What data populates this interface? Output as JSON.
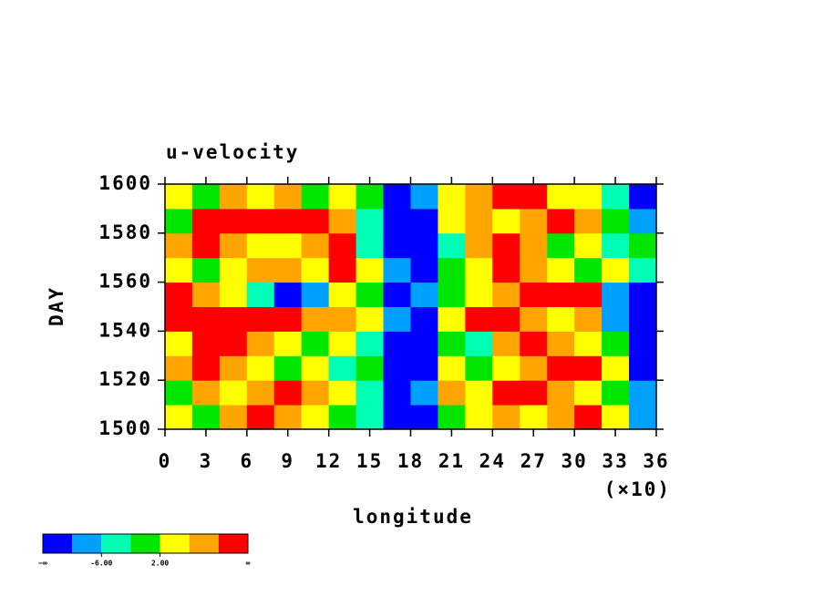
{
  "chart_data": {
    "type": "contourf",
    "title": "u-velocity",
    "x_label": "longitude",
    "y_label": "DAY",
    "x_multiplier_label": "(×10)",
    "xlim": [
      0,
      360
    ],
    "ylim": [
      1500,
      1600
    ],
    "xticks": [
      {
        "value": 0,
        "label": "0"
      },
      {
        "value": 30,
        "label": "3"
      },
      {
        "value": 60,
        "label": "6"
      },
      {
        "value": 90,
        "label": "9"
      },
      {
        "value": 120,
        "label": "12"
      },
      {
        "value": 150,
        "label": "15"
      },
      {
        "value": 180,
        "label": "18"
      },
      {
        "value": 210,
        "label": "21"
      },
      {
        "value": 240,
        "label": "24"
      },
      {
        "value": 270,
        "label": "27"
      },
      {
        "value": 300,
        "label": "30"
      },
      {
        "value": 330,
        "label": "33"
      },
      {
        "value": 360,
        "label": "36"
      }
    ],
    "yticks": [
      1500,
      1520,
      1540,
      1560,
      1580,
      1600
    ],
    "x": [
      10,
      30,
      50,
      70,
      90,
      110,
      130,
      150,
      170,
      190,
      210,
      230,
      250,
      270,
      290,
      310,
      330,
      350
    ],
    "y": [
      1505,
      1515,
      1525,
      1535,
      1545,
      1555,
      1565,
      1575,
      1585,
      1595
    ],
    "z": [
      [
        4,
        0,
        8,
        12,
        8,
        4,
        0,
        -4,
        -12,
        -12,
        0,
        4,
        8,
        4,
        8,
        12,
        4,
        -8
      ],
      [
        0,
        8,
        4,
        8,
        12,
        8,
        4,
        -4,
        -12,
        -8,
        8,
        4,
        12,
        12,
        8,
        4,
        0,
        -8
      ],
      [
        8,
        12,
        8,
        4,
        0,
        4,
        -4,
        0,
        -12,
        -12,
        4,
        0,
        4,
        8,
        12,
        12,
        4,
        -12
      ],
      [
        4,
        12,
        12,
        8,
        4,
        0,
        4,
        -4,
        -12,
        -12,
        0,
        -4,
        8,
        12,
        8,
        4,
        0,
        -12
      ],
      [
        12,
        12,
        12,
        12,
        12,
        8,
        8,
        4,
        -8,
        -12,
        4,
        12,
        12,
        8,
        4,
        8,
        -8,
        -12
      ],
      [
        12,
        8,
        4,
        -4,
        -12,
        -8,
        4,
        0,
        -12,
        -8,
        0,
        4,
        8,
        12,
        12,
        12,
        -8,
        -12
      ],
      [
        4,
        0,
        4,
        8,
        8,
        4,
        12,
        4,
        -8,
        -12,
        0,
        4,
        12,
        8,
        4,
        0,
        4,
        -4
      ],
      [
        8,
        12,
        8,
        4,
        4,
        8,
        12,
        -4,
        -12,
        -12,
        -4,
        8,
        12,
        8,
        0,
        4,
        -4,
        0
      ],
      [
        0,
        12,
        12,
        12,
        12,
        12,
        8,
        -4,
        -12,
        -12,
        4,
        8,
        4,
        8,
        12,
        8,
        0,
        -8
      ],
      [
        4,
        0,
        8,
        4,
        8,
        0,
        4,
        0,
        -12,
        -8,
        4,
        8,
        12,
        12,
        4,
        4,
        -4,
        -12
      ]
    ],
    "levels": [
      -10,
      -6,
      -2,
      2,
      6,
      10
    ],
    "colors": [
      "#0000ff",
      "#00a0ff",
      "#00ffb4",
      "#00e600",
      "#ffff00",
      "#ffa500",
      "#ff0000"
    ],
    "colorbar": {
      "low_label": "−∞",
      "high_label": "∞",
      "ticks": [
        {
          "value": -6,
          "label": "-6.00"
        },
        {
          "value": 2,
          "label": "2.00"
        }
      ]
    }
  }
}
